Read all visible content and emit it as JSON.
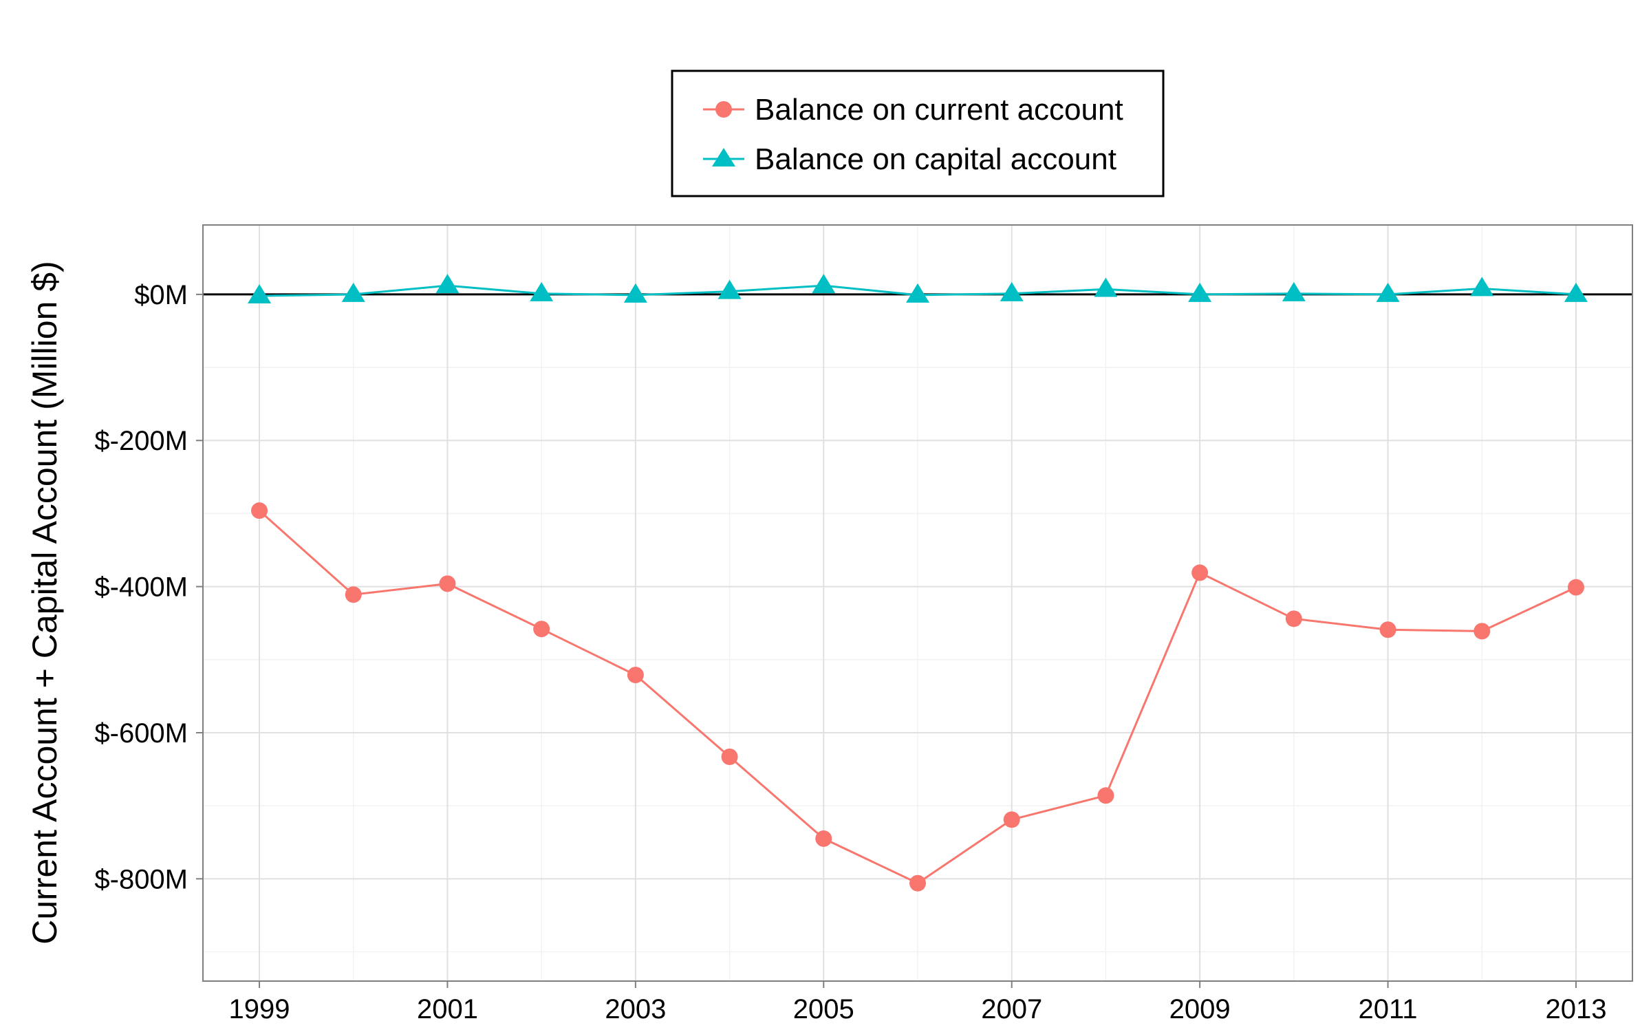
{
  "chart_data": {
    "type": "line",
    "title": "",
    "xlabel": "",
    "ylabel": "Current Account + Capital Account (Million $)",
    "x": [
      1999,
      2000,
      2001,
      2002,
      2003,
      2004,
      2005,
      2006,
      2007,
      2008,
      2009,
      2010,
      2011,
      2012,
      2013
    ],
    "x_ticks": [
      "1999",
      "2001",
      "2003",
      "2005",
      "2007",
      "2009",
      "2011",
      "2013"
    ],
    "y_ticks": [
      {
        "value": 0,
        "label": "$0M"
      },
      {
        "value": -200,
        "label": "$-200M"
      },
      {
        "value": -400,
        "label": "$-400M"
      },
      {
        "value": -600,
        "label": "$-600M"
      },
      {
        "value": -800,
        "label": "$-800M"
      }
    ],
    "xlim": [
      1998.4,
      2013.6
    ],
    "ylim": [
      -940,
      95
    ],
    "grid": true,
    "reference_line": 0,
    "legend_position": "top",
    "series": [
      {
        "name": "Balance on current account",
        "color": "#F8766D",
        "marker": "circle",
        "values": [
          -296,
          -411,
          -396,
          -458,
          -521,
          -633,
          -745,
          -806,
          -719,
          -686,
          -381,
          -444,
          -459,
          -461,
          -401
        ]
      },
      {
        "name": "Balance on capital account",
        "color": "#00BFC4",
        "marker": "triangle",
        "values": [
          -2,
          0,
          12,
          1,
          -1,
          4,
          12,
          -1,
          1,
          7,
          0,
          1,
          0,
          8,
          0
        ]
      }
    ]
  }
}
